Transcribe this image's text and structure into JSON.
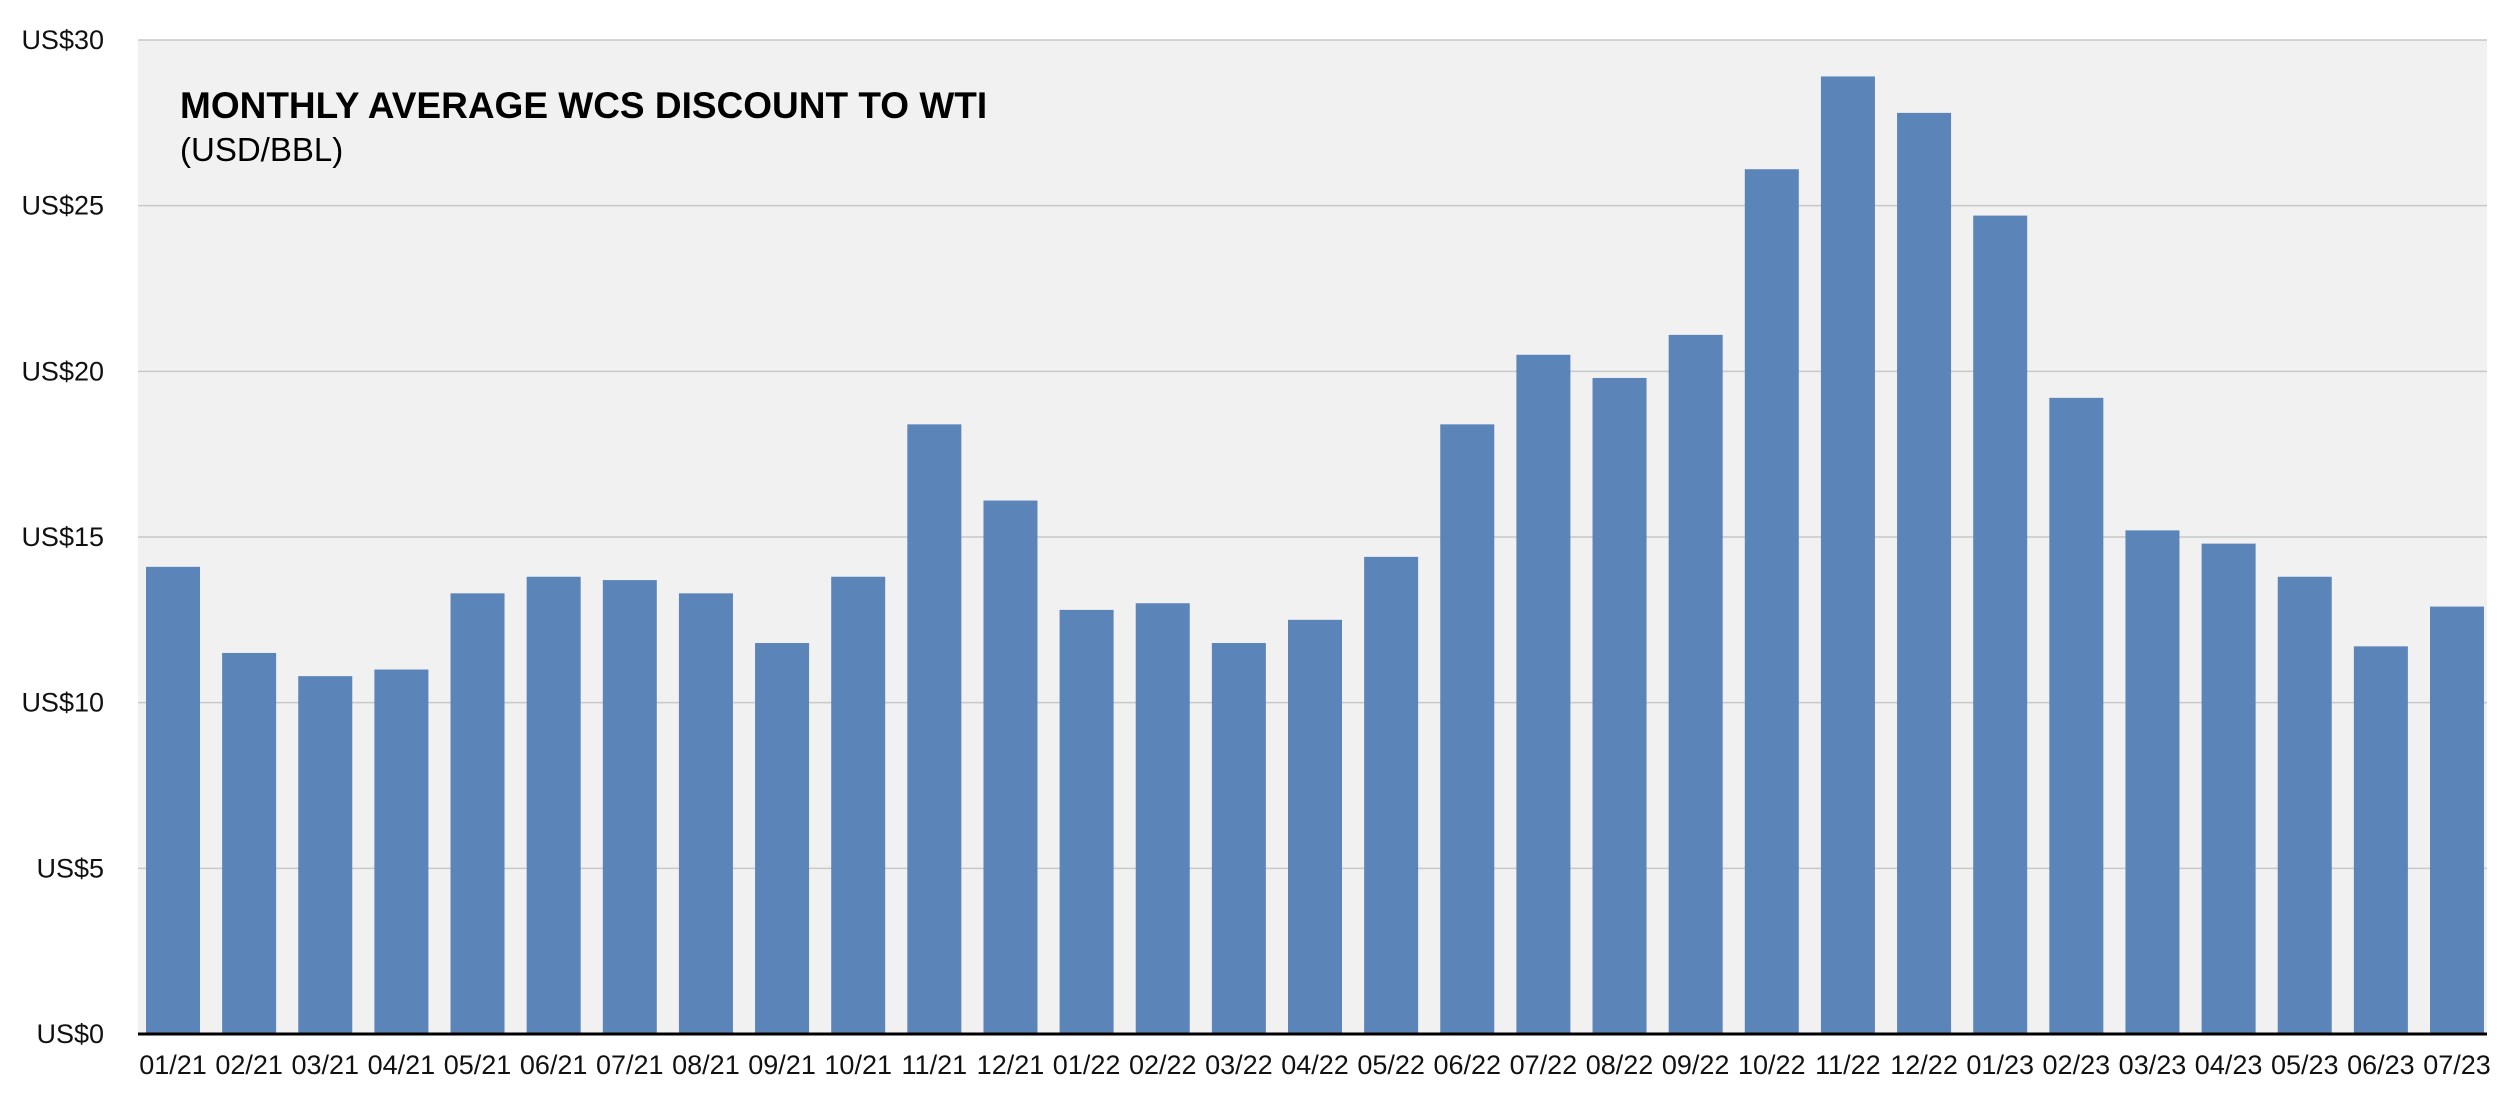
{
  "colors": {
    "plot_background": "#f1f1f1",
    "bar": "#5b84b8",
    "gridline": "#c8c8c8",
    "axis": "#000000",
    "text": "#111111"
  },
  "chart_data": {
    "type": "bar",
    "title": "MONTHLY AVERAGE WCS DISCOUNT TO WTI",
    "subtitle": "(USD/BBL)",
    "xlabel": "",
    "ylabel": "",
    "ylim": [
      0,
      30
    ],
    "grid": true,
    "yticks": [
      {
        "value": 0,
        "label": "US$0"
      },
      {
        "value": 5,
        "label": "US$5"
      },
      {
        "value": 10,
        "label": "US$10"
      },
      {
        "value": 15,
        "label": "US$15"
      },
      {
        "value": 20,
        "label": "US$20"
      },
      {
        "value": 25,
        "label": "US$25"
      },
      {
        "value": 30,
        "label": "US$30"
      }
    ],
    "categories": [
      "01/21",
      "02/21",
      "03/21",
      "04/21",
      "05/21",
      "06/21",
      "07/21",
      "08/21",
      "09/21",
      "10/21",
      "11/21",
      "12/21",
      "01/22",
      "02/22",
      "03/22",
      "04/22",
      "05/22",
      "06/22",
      "07/22",
      "08/22",
      "09/22",
      "10/22",
      "11/22",
      "12/22",
      "01/23",
      "02/23",
      "03/23",
      "04/23",
      "05/23",
      "06/23",
      "07/23"
    ],
    "values": [
      14.1,
      11.5,
      10.8,
      11.0,
      13.3,
      13.8,
      13.7,
      13.3,
      11.8,
      13.8,
      18.4,
      16.1,
      12.8,
      13.0,
      11.8,
      12.5,
      14.4,
      18.4,
      20.5,
      19.8,
      21.1,
      26.1,
      28.9,
      27.8,
      24.7,
      19.2,
      15.2,
      14.8,
      13.8,
      11.7,
      12.9
    ]
  }
}
